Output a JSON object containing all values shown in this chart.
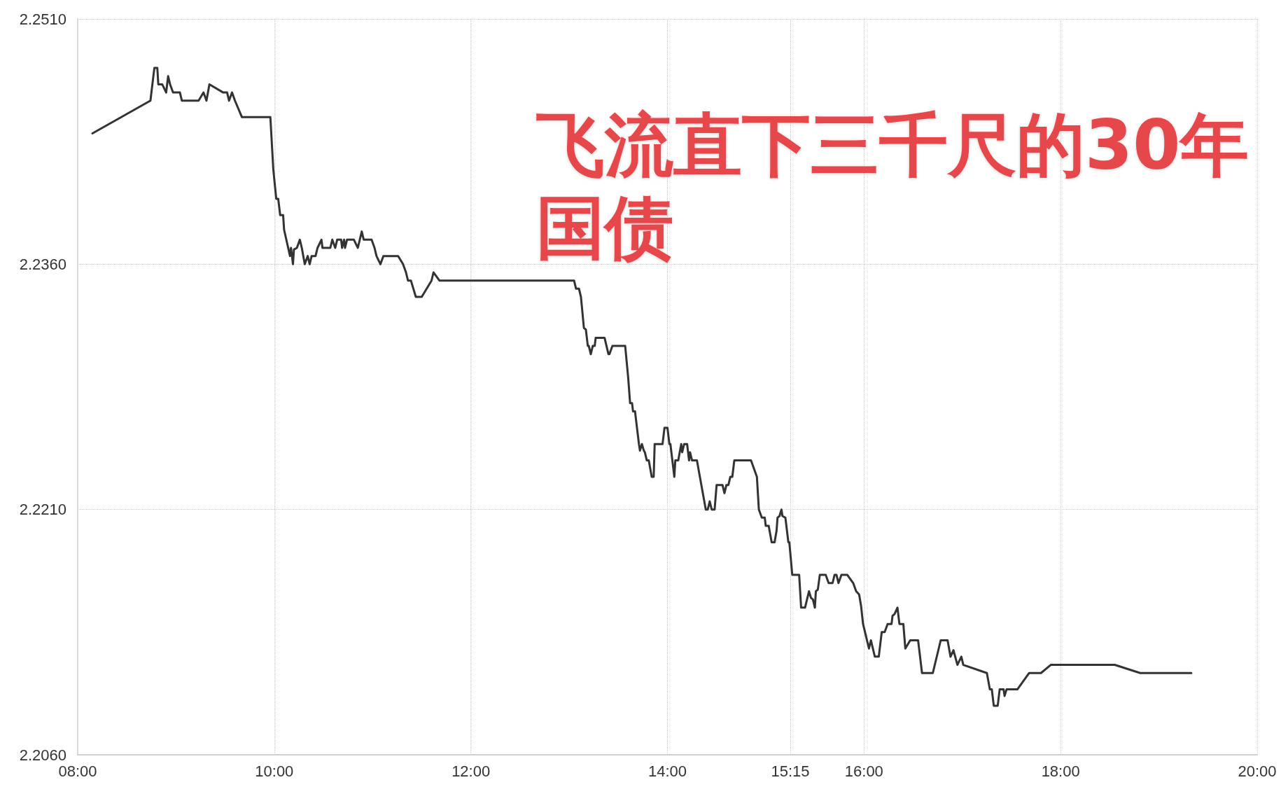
{
  "chart_data": {
    "type": "line",
    "title": "飞流直下三千尺的30年国债",
    "x": [
      8.15,
      8.74,
      8.78,
      8.81,
      8.82,
      8.86,
      8.9,
      8.92,
      8.94,
      8.97,
      9.04,
      9.06,
      9.23,
      9.28,
      9.31,
      9.34,
      9.48,
      9.52,
      9.54,
      9.57,
      9.6,
      9.67,
      9.96,
      9.99,
      10.02,
      10.04,
      10.06,
      10.09,
      10.1,
      10.16,
      10.17,
      10.19,
      10.2,
      10.23,
      10.26,
      10.28,
      10.31,
      10.34,
      10.36,
      10.38,
      10.42,
      10.44,
      10.48,
      10.49,
      10.57,
      10.59,
      10.62,
      10.64,
      10.68,
      10.69,
      10.71,
      10.72,
      10.74,
      10.81,
      10.85,
      10.89,
      10.91,
      10.99,
      11.02,
      11.04,
      11.08,
      11.11,
      11.26,
      11.31,
      11.34,
      11.36,
      11.39,
      11.44,
      11.5,
      11.6,
      11.62,
      11.68,
      13.05,
      13.07,
      13.1,
      13.12,
      13.15,
      13.17,
      13.19,
      13.2,
      13.22,
      13.24,
      13.26,
      13.27,
      13.36,
      13.4,
      13.41,
      13.44,
      13.57,
      13.6,
      13.62,
      13.64,
      13.65,
      13.67,
      13.71,
      13.72,
      13.74,
      13.76,
      13.77,
      13.79,
      13.81,
      13.84,
      13.86,
      13.87,
      13.95,
      13.97,
      14.0,
      14.02,
      14.03,
      14.07,
      14.08,
      14.11,
      14.14,
      14.15,
      14.17,
      14.2,
      14.22,
      14.23,
      14.25,
      14.3,
      14.33,
      14.39,
      14.41,
      14.43,
      14.45,
      14.48,
      14.5,
      14.56,
      14.58,
      14.6,
      14.62,
      14.64,
      14.66,
      14.68,
      14.85,
      14.91,
      14.93,
      14.96,
      14.99,
      15.0,
      15.03,
      15.06,
      15.09,
      15.11,
      15.12,
      15.14,
      15.16,
      15.17,
      15.2,
      15.21,
      15.23,
      15.24,
      15.27,
      15.34,
      15.36,
      15.4,
      15.44,
      15.46,
      15.48,
      15.5,
      15.51,
      15.53,
      15.55,
      15.61,
      15.64,
      15.68,
      15.7,
      15.72,
      15.74,
      15.77,
      15.83,
      15.89,
      15.92,
      15.95,
      15.97,
      15.99,
      16.05,
      16.07,
      16.11,
      16.15,
      16.18,
      16.21,
      16.24,
      16.28,
      16.29,
      16.31,
      16.34,
      16.36,
      16.4,
      16.42,
      16.47,
      16.55,
      16.56,
      16.59,
      16.7,
      16.78,
      16.85,
      16.88,
      16.91,
      16.95,
      16.99,
      17.01,
      17.25,
      17.28,
      17.3,
      17.32,
      17.36,
      17.38,
      17.42,
      17.43,
      17.45,
      17.56,
      17.68,
      17.8,
      17.9,
      18.55,
      18.81,
      19.33
    ],
    "values": [
      2.244,
      2.246,
      2.248,
      2.248,
      2.247,
      2.247,
      2.2465,
      2.2475,
      2.247,
      2.2465,
      2.2465,
      2.246,
      2.246,
      2.2465,
      2.246,
      2.247,
      2.2465,
      2.2465,
      2.246,
      2.2465,
      2.246,
      2.245,
      2.245,
      2.2418,
      2.24,
      2.24,
      2.239,
      2.239,
      2.2381,
      2.2365,
      2.237,
      2.236,
      2.2369,
      2.237,
      2.2375,
      2.237,
      2.236,
      2.2365,
      2.236,
      2.2365,
      2.2365,
      2.237,
      2.2375,
      2.237,
      2.237,
      2.2375,
      2.237,
      2.2375,
      2.2375,
      2.237,
      2.2375,
      2.237,
      2.2375,
      2.2375,
      2.237,
      2.238,
      2.2375,
      2.2375,
      2.237,
      2.2365,
      2.236,
      2.2365,
      2.2365,
      2.236,
      2.2355,
      2.235,
      2.235,
      2.234,
      2.234,
      2.235,
      2.2355,
      2.235,
      2.235,
      2.2345,
      2.2345,
      2.234,
      2.2321,
      2.232,
      2.231,
      2.231,
      2.2305,
      2.231,
      2.231,
      2.2315,
      2.2315,
      2.2305,
      2.2305,
      2.231,
      2.231,
      2.2291,
      2.2275,
      2.2275,
      2.227,
      2.227,
      2.225,
      2.2246,
      2.225,
      2.2246,
      2.2245,
      2.224,
      2.224,
      2.223,
      2.223,
      2.225,
      2.225,
      2.226,
      2.226,
      2.225,
      2.225,
      2.223,
      2.224,
      2.224,
      2.225,
      2.2245,
      2.225,
      2.225,
      2.224,
      2.2245,
      2.224,
      2.224,
      2.223,
      2.221,
      2.221,
      2.2215,
      2.221,
      2.221,
      2.2225,
      2.2225,
      2.222,
      2.2225,
      2.2225,
      2.223,
      2.223,
      2.224,
      2.224,
      2.223,
      2.221,
      2.2205,
      2.2205,
      2.22,
      2.22,
      2.219,
      2.219,
      2.2197,
      2.2205,
      2.2206,
      2.221,
      2.2206,
      2.2205,
      2.22,
      2.219,
      2.219,
      2.217,
      2.217,
      2.215,
      2.215,
      2.216,
      2.2156,
      2.2155,
      2.215,
      2.216,
      2.2161,
      2.217,
      2.217,
      2.2165,
      2.2165,
      2.217,
      2.217,
      2.2165,
      2.217,
      2.217,
      2.2165,
      2.216,
      2.2158,
      2.2151,
      2.214,
      2.2125,
      2.213,
      2.212,
      2.212,
      2.2135,
      2.2135,
      2.214,
      2.214,
      2.2145,
      2.2146,
      2.215,
      2.214,
      2.214,
      2.2125,
      2.213,
      2.213,
      2.2125,
      2.211,
      2.211,
      2.213,
      2.213,
      2.212,
      2.2124,
      2.2115,
      2.212,
      2.2115,
      2.211,
      2.21,
      2.21,
      2.209,
      2.209,
      2.21,
      2.21,
      2.2096,
      2.21,
      2.21,
      2.211,
      2.211,
      2.2115,
      2.2115,
      2.211,
      2.211
    ],
    "color": "#333333",
    "xlim": [
      8,
      20
    ],
    "xticks": [
      {
        "value": 8,
        "label": "08:00"
      },
      {
        "value": 10,
        "label": "10:00"
      },
      {
        "value": 12,
        "label": "12:00"
      },
      {
        "value": 14,
        "label": "14:00"
      },
      {
        "value": 15.25,
        "label": "15:15"
      },
      {
        "value": 16,
        "label": "16:00"
      },
      {
        "value": 18,
        "label": "18:00"
      },
      {
        "value": 20,
        "label": "20:00"
      }
    ],
    "ylim": [
      2.206,
      2.251
    ],
    "yticks": [
      {
        "value": 2.206,
        "label": "2.2060"
      },
      {
        "value": 2.221,
        "label": "2.2210"
      },
      {
        "value": 2.236,
        "label": "2.2360"
      },
      {
        "value": 2.251,
        "label": "2.2510"
      }
    ],
    "grid": true,
    "marker": "none",
    "line_style": "solid"
  }
}
